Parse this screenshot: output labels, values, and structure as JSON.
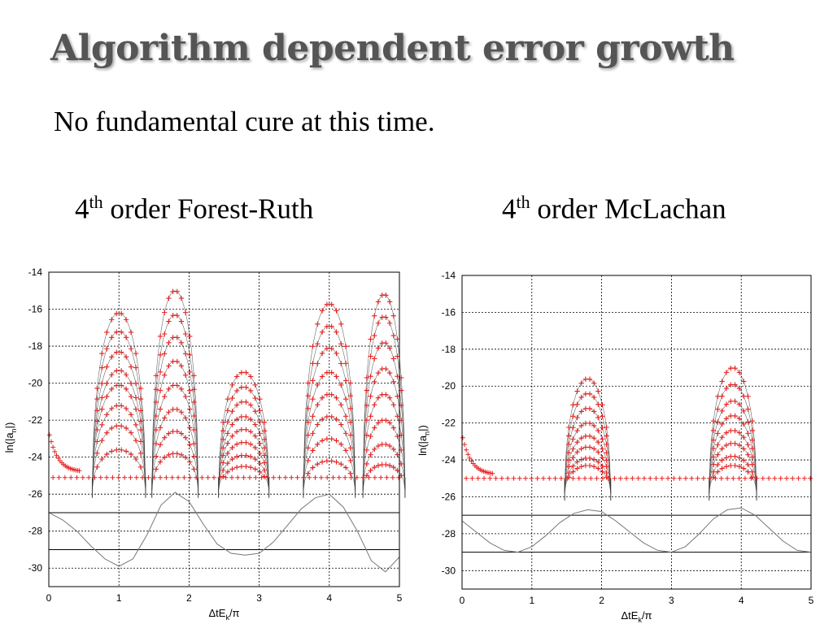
{
  "slide": {
    "title": "Algorithm dependent error growth",
    "subtitle": "No fundamental cure at this time.",
    "captions": [
      {
        "order": "4",
        "sup": "th",
        "rest": " order Forest-Ruth"
      },
      {
        "order": "4",
        "sup": "th",
        "rest": " order McLachan"
      }
    ]
  },
  "colors": {
    "markers": "#e82020",
    "curves": "#3a3a3a",
    "grid": "#000000",
    "lower_curve": "#777777"
  },
  "chart_data": [
    {
      "type": "line",
      "name": "forest-ruth",
      "xlabel": {
        "main": "ΔtE",
        "sub": "k",
        "tail": "/π"
      },
      "ylabel": {
        "main": "ln(|a",
        "sub": "n",
        "tail": "|)"
      },
      "xlim": [
        0,
        5
      ],
      "ylim": [
        -31,
        -14
      ],
      "xticks": [
        0,
        1,
        2,
        3,
        4,
        5
      ],
      "yticks": [
        -14,
        -16,
        -18,
        -20,
        -22,
        -24,
        -26,
        -28,
        -30
      ],
      "grid": true,
      "baseline": -25.1,
      "lobes": [
        {
          "center": 1.0,
          "half_width": 0.38,
          "peaks": [
            -16.2,
            -17.2,
            -18.3,
            -19.3,
            -20.1,
            -21.2,
            -22.3,
            -23.6
          ]
        },
        {
          "center": 1.8,
          "half_width": 0.33,
          "peaks": [
            -15.0,
            -16.3,
            -17.5,
            -18.8,
            -20.1,
            -21.4,
            -22.6,
            -23.8
          ]
        },
        {
          "center": 2.78,
          "half_width": 0.36,
          "peaks": [
            -19.4,
            -20.2,
            -21.0,
            -21.8,
            -22.5,
            -23.2,
            -23.9,
            -24.5
          ]
        },
        {
          "center": 4.0,
          "half_width": 0.37,
          "peaks": [
            -15.7,
            -16.9,
            -18.1,
            -19.4,
            -20.6,
            -21.8,
            -23.0,
            -24.2
          ]
        },
        {
          "center": 4.78,
          "half_width": 0.3,
          "peaks": [
            -15.2,
            -16.4,
            -17.8,
            -19.2,
            -20.6,
            -22.0,
            -23.3,
            -24.4
          ]
        }
      ],
      "lower_curve": {
        "x": [
          0,
          0.2,
          0.4,
          0.6,
          0.8,
          1.0,
          1.2,
          1.4,
          1.6,
          1.8,
          2.0,
          2.2,
          2.4,
          2.6,
          2.8,
          3.0,
          3.2,
          3.4,
          3.6,
          3.8,
          4.0,
          4.2,
          4.4,
          4.6,
          4.8,
          5.0
        ],
        "y": [
          -27.0,
          -27.4,
          -28.0,
          -28.8,
          -29.5,
          -29.9,
          -29.5,
          -28.2,
          -26.6,
          -25.9,
          -26.4,
          -27.6,
          -28.7,
          -29.2,
          -29.3,
          -29.2,
          -28.6,
          -27.7,
          -26.8,
          -26.2,
          -26.0,
          -26.7,
          -28.0,
          -29.6,
          -30.2,
          -29.4
        ]
      },
      "hlines": [
        -27.0,
        -29.0
      ]
    },
    {
      "type": "line",
      "name": "mclachan",
      "xlabel": {
        "main": "ΔtE",
        "sub": "k",
        "tail": "/π"
      },
      "ylabel": {
        "main": "ln(|a",
        "sub": "n",
        "tail": "|)"
      },
      "xlim": [
        0,
        5
      ],
      "ylim": [
        -31,
        -14
      ],
      "xticks": [
        0,
        1,
        2,
        3,
        4,
        5
      ],
      "yticks": [
        -14,
        -16,
        -18,
        -20,
        -22,
        -24,
        -26,
        -28,
        -30
      ],
      "grid": true,
      "baseline": -25.0,
      "lobes": [
        {
          "center": 1.8,
          "half_width": 0.33,
          "peaks": [
            -19.6,
            -20.4,
            -21.2,
            -22.0,
            -22.7,
            -23.3,
            -23.9,
            -24.3
          ]
        },
        {
          "center": 3.88,
          "half_width": 0.34,
          "peaks": [
            -19.0,
            -19.9,
            -20.8,
            -21.6,
            -22.4,
            -23.1,
            -23.8,
            -24.3
          ]
        }
      ],
      "lower_curve": {
        "x": [
          0,
          0.2,
          0.4,
          0.6,
          0.8,
          1.0,
          1.2,
          1.4,
          1.6,
          1.8,
          2.0,
          2.2,
          2.4,
          2.6,
          2.8,
          3.0,
          3.2,
          3.4,
          3.6,
          3.8,
          4.0,
          4.2,
          4.4,
          4.6,
          4.8,
          5.0
        ],
        "y": [
          -27.3,
          -27.9,
          -28.5,
          -28.9,
          -29.0,
          -28.7,
          -28.1,
          -27.4,
          -26.9,
          -26.7,
          -26.8,
          -27.3,
          -27.9,
          -28.5,
          -28.9,
          -29.0,
          -28.7,
          -28.0,
          -27.2,
          -26.7,
          -26.6,
          -27.0,
          -27.7,
          -28.4,
          -28.9,
          -29.0
        ]
      },
      "hlines": [
        -27.0,
        -29.0
      ]
    }
  ]
}
